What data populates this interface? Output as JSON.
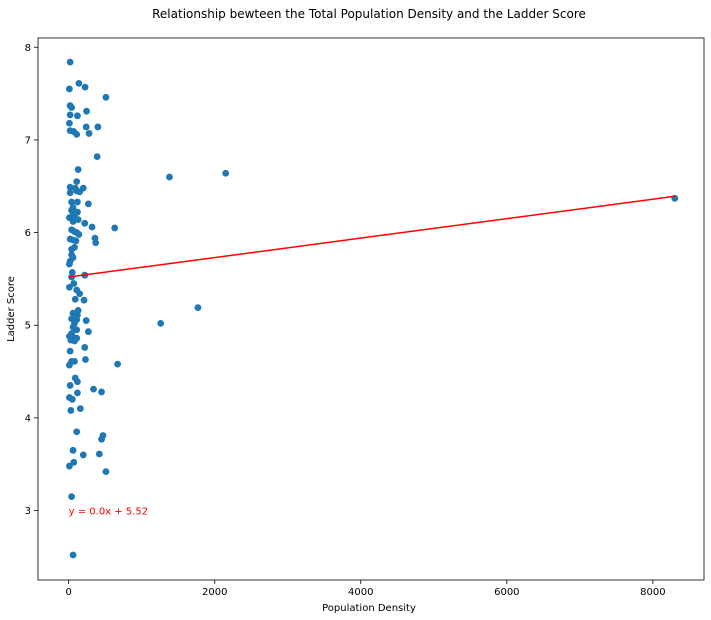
{
  "chart_data": {
    "type": "scatter",
    "title": "Relationship bewteen the Total Population Density and the Ladder Score",
    "xlabel": "Population Density",
    "ylabel": "Ladder Score",
    "xlim": [
      -420,
      8700
    ],
    "ylim": [
      2.25,
      8.1
    ],
    "xticks": [
      0,
      2000,
      4000,
      6000,
      8000
    ],
    "yticks": [
      3,
      4,
      5,
      6,
      7,
      8
    ],
    "grid": false,
    "annotation": {
      "text": "y = 0.0x + 5.52",
      "x": 0,
      "y": 3.0,
      "color": "#ff0000"
    },
    "regression_line": {
      "slope": 0.000105,
      "intercept": 5.52,
      "x_range": [
        0,
        8300
      ],
      "color": "#ff0000"
    },
    "marker_color": "#1f77b4",
    "series": [
      {
        "points": [
          {
            "x": 20,
            "y": 7.84
          },
          {
            "x": 10,
            "y": 7.55
          },
          {
            "x": 140,
            "y": 7.61
          },
          {
            "x": 225,
            "y": 7.57
          },
          {
            "x": 510,
            "y": 7.46
          },
          {
            "x": 20,
            "y": 7.37
          },
          {
            "x": 40,
            "y": 7.35
          },
          {
            "x": 245,
            "y": 7.31
          },
          {
            "x": 20,
            "y": 7.27
          },
          {
            "x": 120,
            "y": 7.26
          },
          {
            "x": 10,
            "y": 7.18
          },
          {
            "x": 240,
            "y": 7.14
          },
          {
            "x": 400,
            "y": 7.14
          },
          {
            "x": 20,
            "y": 7.1
          },
          {
            "x": 70,
            "y": 7.09
          },
          {
            "x": 110,
            "y": 7.06
          },
          {
            "x": 280,
            "y": 7.07
          },
          {
            "x": 390,
            "y": 6.82
          },
          {
            "x": 130,
            "y": 6.68
          },
          {
            "x": 1380,
            "y": 6.6
          },
          {
            "x": 2150,
            "y": 6.64
          },
          {
            "x": 110,
            "y": 6.55
          },
          {
            "x": 20,
            "y": 6.49
          },
          {
            "x": 90,
            "y": 6.48
          },
          {
            "x": 200,
            "y": 6.48
          },
          {
            "x": 150,
            "y": 6.44
          },
          {
            "x": 20,
            "y": 6.43
          },
          {
            "x": 110,
            "y": 6.45
          },
          {
            "x": 40,
            "y": 6.33
          },
          {
            "x": 120,
            "y": 6.33
          },
          {
            "x": 270,
            "y": 6.31
          },
          {
            "x": 60,
            "y": 6.27
          },
          {
            "x": 40,
            "y": 6.24
          },
          {
            "x": 120,
            "y": 6.22
          },
          {
            "x": 80,
            "y": 6.19
          },
          {
            "x": 10,
            "y": 6.16
          },
          {
            "x": 40,
            "y": 6.17
          },
          {
            "x": 130,
            "y": 6.14
          },
          {
            "x": 60,
            "y": 6.12
          },
          {
            "x": 220,
            "y": 6.1
          },
          {
            "x": 320,
            "y": 6.06
          },
          {
            "x": 630,
            "y": 6.05
          },
          {
            "x": 40,
            "y": 6.03
          },
          {
            "x": 80,
            "y": 6.01
          },
          {
            "x": 110,
            "y": 6.0
          },
          {
            "x": 140,
            "y": 5.98
          },
          {
            "x": 360,
            "y": 5.94
          },
          {
            "x": 20,
            "y": 5.93
          },
          {
            "x": 60,
            "y": 5.92
          },
          {
            "x": 100,
            "y": 5.91
          },
          {
            "x": 370,
            "y": 5.89
          },
          {
            "x": 40,
            "y": 5.82
          },
          {
            "x": 80,
            "y": 5.84
          },
          {
            "x": 40,
            "y": 5.76
          },
          {
            "x": 60,
            "y": 5.73
          },
          {
            "x": 20,
            "y": 5.69
          },
          {
            "x": 10,
            "y": 5.66
          },
          {
            "x": 50,
            "y": 5.57
          },
          {
            "x": 40,
            "y": 5.52
          },
          {
            "x": 220,
            "y": 5.54
          },
          {
            "x": 70,
            "y": 5.45
          },
          {
            "x": 10,
            "y": 5.41
          },
          {
            "x": 110,
            "y": 5.38
          },
          {
            "x": 150,
            "y": 5.34
          },
          {
            "x": 90,
            "y": 5.28
          },
          {
            "x": 210,
            "y": 5.27
          },
          {
            "x": 1770,
            "y": 5.19
          },
          {
            "x": 130,
            "y": 5.16
          },
          {
            "x": 60,
            "y": 5.13
          },
          {
            "x": 120,
            "y": 5.11
          },
          {
            "x": 40,
            "y": 5.07
          },
          {
            "x": 110,
            "y": 5.06
          },
          {
            "x": 240,
            "y": 5.05
          },
          {
            "x": 1260,
            "y": 5.02
          },
          {
            "x": 80,
            "y": 5.02
          },
          {
            "x": 60,
            "y": 4.98
          },
          {
            "x": 110,
            "y": 4.95
          },
          {
            "x": 270,
            "y": 4.93
          },
          {
            "x": 40,
            "y": 4.91
          },
          {
            "x": 10,
            "y": 4.88
          },
          {
            "x": 60,
            "y": 4.87
          },
          {
            "x": 110,
            "y": 4.86
          },
          {
            "x": 30,
            "y": 4.84
          },
          {
            "x": 80,
            "y": 4.83
          },
          {
            "x": 220,
            "y": 4.76
          },
          {
            "x": 20,
            "y": 4.72
          },
          {
            "x": 230,
            "y": 4.63
          },
          {
            "x": 80,
            "y": 4.61
          },
          {
            "x": 40,
            "y": 4.61
          },
          {
            "x": 670,
            "y": 4.58
          },
          {
            "x": 10,
            "y": 4.57
          },
          {
            "x": 90,
            "y": 4.43
          },
          {
            "x": 120,
            "y": 4.39
          },
          {
            "x": 20,
            "y": 4.35
          },
          {
            "x": 340,
            "y": 4.31
          },
          {
            "x": 450,
            "y": 4.28
          },
          {
            "x": 120,
            "y": 4.27
          },
          {
            "x": 10,
            "y": 4.22
          },
          {
            "x": 50,
            "y": 4.2
          },
          {
            "x": 160,
            "y": 4.1
          },
          {
            "x": 30,
            "y": 4.08
          },
          {
            "x": 110,
            "y": 3.85
          },
          {
            "x": 470,
            "y": 3.81
          },
          {
            "x": 450,
            "y": 3.77
          },
          {
            "x": 60,
            "y": 3.65
          },
          {
            "x": 420,
            "y": 3.61
          },
          {
            "x": 200,
            "y": 3.6
          },
          {
            "x": 70,
            "y": 3.52
          },
          {
            "x": 10,
            "y": 3.48
          },
          {
            "x": 510,
            "y": 3.42
          },
          {
            "x": 40,
            "y": 3.15
          },
          {
            "x": 60,
            "y": 2.52
          },
          {
            "x": 8300,
            "y": 6.37
          }
        ]
      }
    ]
  }
}
